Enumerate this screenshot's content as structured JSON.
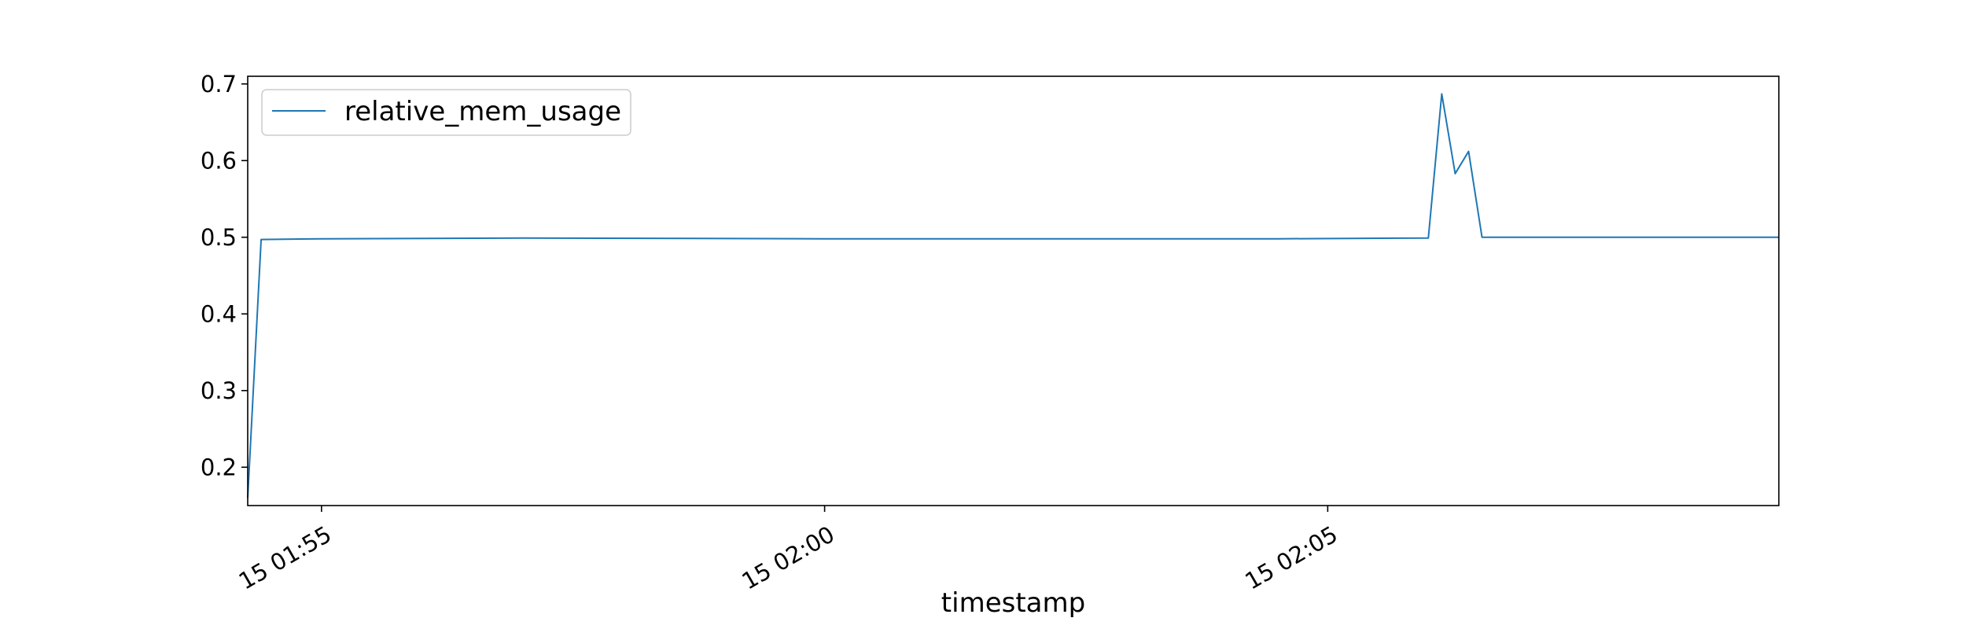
{
  "chart_data": {
    "type": "line",
    "title": "",
    "xlabel": "timestamp",
    "ylabel": "",
    "grid": false,
    "legend": {
      "placement": "top-left",
      "entries": [
        "relative_mem_usage"
      ]
    },
    "xlim": [
      "15 01:54:16",
      "15 02:09:29"
    ],
    "ylim": [
      0.15,
      0.71
    ],
    "xticks": [
      {
        "value": "15 01:55:00",
        "label": "15 01:55"
      },
      {
        "value": "15 02:00:00",
        "label": "15 02:00"
      },
      {
        "value": "15 02:05:00",
        "label": "15 02:05"
      }
    ],
    "yticks": [
      {
        "value": 0.2,
        "label": "0.2"
      },
      {
        "value": 0.3,
        "label": "0.3"
      },
      {
        "value": 0.4,
        "label": "0.4"
      },
      {
        "value": 0.5,
        "label": "0.5"
      },
      {
        "value": 0.6,
        "label": "0.6"
      },
      {
        "value": 0.7,
        "label": "0.7"
      }
    ],
    "series": [
      {
        "name": "relative_mem_usage",
        "color": "#1f77b4",
        "points": [
          {
            "x": "15 01:54:16",
            "y": 0.16
          },
          {
            "x": "15 01:54:24",
            "y": 0.497
          },
          {
            "x": "15 01:55:00",
            "y": 0.498
          },
          {
            "x": "15 01:57:00",
            "y": 0.499
          },
          {
            "x": "15 02:00:00",
            "y": 0.498
          },
          {
            "x": "15 02:04:30",
            "y": 0.498
          },
          {
            "x": "15 02:06:00",
            "y": 0.499
          },
          {
            "x": "15 02:06:08",
            "y": 0.687
          },
          {
            "x": "15 02:06:16",
            "y": 0.583
          },
          {
            "x": "15 02:06:24",
            "y": 0.612
          },
          {
            "x": "15 02:06:32",
            "y": 0.5
          },
          {
            "x": "15 02:09:29",
            "y": 0.5
          }
        ]
      }
    ]
  }
}
